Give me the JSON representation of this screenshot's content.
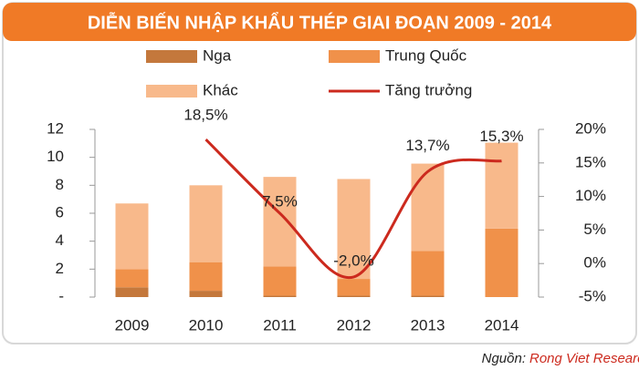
{
  "chart_data": {
    "type": "bar",
    "title": "DIỄN BIẾN NHẬP KHẨU THÉP GIAI ĐOẠN 2009 - 2014",
    "categories": [
      "2009",
      "2010",
      "2011",
      "2012",
      "2013",
      "2014"
    ],
    "series": [
      {
        "name": "Nga",
        "color": "#c4783c",
        "values": [
          0.7,
          0.45,
          0.1,
          0.1,
          0.1,
          0
        ]
      },
      {
        "name": "Trung Quốc",
        "color": "#f0914a",
        "values": [
          1.3,
          2.05,
          2.1,
          1.2,
          3.2,
          4.9
        ]
      },
      {
        "name": "Khác",
        "color": "#f8b98b",
        "values": [
          4.7,
          5.5,
          6.4,
          7.15,
          6.25,
          6.15
        ]
      },
      {
        "name": "Tăng trưởng",
        "color": "#cc2a1e",
        "type": "line",
        "axis": "y2",
        "values": [
          null,
          18.5,
          7.5,
          -2.0,
          13.7,
          15.3
        ],
        "value_labels": [
          null,
          "18,5%",
          "7,5%",
          "-2,0%",
          "13,7%",
          "15,3%"
        ]
      }
    ],
    "ylim": [
      0,
      12
    ],
    "yticks": [
      {
        "value": 0,
        "label": "-"
      },
      2,
      4,
      6,
      8,
      10,
      12
    ],
    "y2lim": [
      -5,
      20
    ],
    "y2ticks": [
      {
        "value": -5,
        "label": "-5%"
      },
      {
        "value": 0,
        "label": "0%"
      },
      {
        "value": 5,
        "label": "5%"
      },
      {
        "value": 10,
        "label": "10%"
      },
      {
        "value": 15,
        "label": "15%"
      },
      {
        "value": 20,
        "label": "20%"
      }
    ],
    "source_label": "Nguồn:",
    "source": "Rong Viet Research"
  }
}
